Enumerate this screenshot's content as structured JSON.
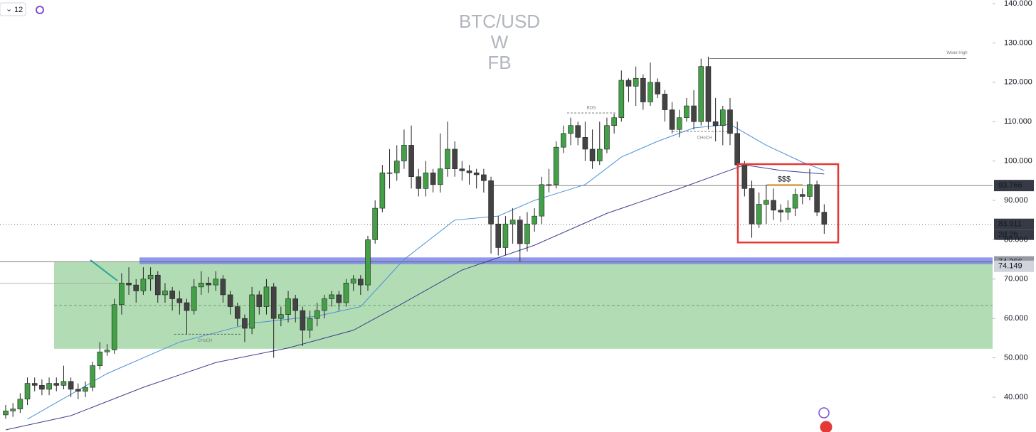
{
  "toolbar": {
    "interval": "12"
  },
  "chart_data": {
    "type": "candlestick",
    "title_lines": [
      "BTC/USD",
      "W",
      "FB"
    ],
    "up_color": "#43a047",
    "down_color": "#434343",
    "wick_color": "#222222",
    "ylim": [
      31.15,
      140.9
    ],
    "yticks": [
      {
        "value": 40,
        "label": "40.000"
      },
      {
        "value": 50,
        "label": "50.000"
      },
      {
        "value": 60,
        "label": "60.000"
      },
      {
        "value": 70,
        "label": "70.000"
      },
      {
        "value": 80,
        "label": "80.000"
      },
      {
        "value": 90,
        "label": "90.000"
      },
      {
        "value": 100,
        "label": "100.000"
      },
      {
        "value": 110,
        "label": "110.000"
      },
      {
        "value": 120,
        "label": "120.000"
      },
      {
        "value": 130,
        "label": "130.000"
      },
      {
        "value": 140,
        "label": "140.000"
      }
    ],
    "open": [
      35.5,
      36.5,
      37,
      39.5,
      43.5,
      43,
      42,
      43.5,
      43,
      44,
      42,
      41.5,
      42.5,
      48,
      51.5,
      52,
      63.5,
      69,
      68.5,
      67,
      70,
      71,
      66,
      67,
      65,
      64,
      62,
      68,
      69,
      68.5,
      70,
      66,
      63,
      60,
      57.5,
      66,
      63,
      68,
      60,
      61,
      65,
      62,
      57,
      60,
      62,
      65,
      66,
      64,
      69,
      70,
      68.5,
      80,
      88,
      97,
      97,
      100,
      104,
      96,
      93,
      97,
      94,
      98,
      103,
      98,
      97.5,
      97,
      96.5,
      95,
      84,
      78,
      84,
      85,
      79,
      84,
      86,
      94,
      94,
      103.5,
      107,
      109,
      106,
      103,
      100,
      103,
      109,
      111,
      120.5,
      119,
      121,
      115,
      120,
      117,
      113,
      108,
      111,
      114,
      110,
      124,
      110,
      109,
      113,
      107,
      99,
      93,
      84,
      89,
      90,
      87.5,
      87,
      88,
      91.5,
      91,
      94,
      87
    ],
    "high": [
      38,
      38.5,
      41,
      45,
      45,
      44.5,
      45,
      45,
      48,
      45,
      43.5,
      44,
      49,
      54,
      53.5,
      65,
      71.5,
      73,
      70,
      73,
      73,
      72,
      69,
      68,
      67,
      65,
      70,
      72,
      70.5,
      72,
      71,
      67,
      64,
      61,
      68,
      67,
      70,
      69,
      63,
      67,
      66,
      63,
      62,
      64,
      66,
      67,
      67,
      70,
      71,
      71,
      81,
      90,
      99,
      103,
      104,
      108,
      109,
      98,
      100,
      98,
      107,
      110,
      105,
      100,
      99,
      98,
      98,
      96,
      86,
      86,
      88,
      86,
      87,
      88,
      96,
      98,
      105,
      109,
      111,
      110,
      110,
      108,
      110,
      111,
      112,
      123,
      121,
      124,
      122,
      125,
      121,
      118,
      115,
      113,
      116,
      118,
      126,
      126.5,
      116,
      114,
      116,
      110,
      100,
      95,
      92,
      94,
      93,
      89,
      90,
      93,
      93,
      98,
      95,
      89
    ],
    "low": [
      34.5,
      35,
      36,
      38,
      41.5,
      40.5,
      40.5,
      41.5,
      42,
      40,
      39.5,
      40,
      41.5,
      47,
      50.5,
      51,
      61,
      66,
      64,
      66,
      67,
      64,
      64,
      62,
      61,
      56,
      61,
      66,
      66.5,
      67,
      64,
      61,
      58,
      54,
      56,
      61,
      61,
      50,
      58,
      59,
      59,
      53,
      55,
      58,
      60,
      63,
      62,
      63,
      67,
      66,
      67,
      79,
      87,
      93,
      95,
      98,
      93,
      91,
      91,
      92,
      92,
      96,
      96,
      95,
      94,
      93,
      92,
      76.5,
      76,
      76,
      79,
      74.5,
      77,
      82,
      84,
      92,
      93,
      102,
      104,
      104,
      100,
      98,
      99,
      102,
      107,
      110,
      115,
      114,
      113,
      114,
      116,
      110,
      107,
      106,
      110,
      108,
      109,
      108,
      105,
      104,
      104,
      97,
      91,
      80.5,
      83,
      84,
      85,
      84.5,
      85,
      86,
      89,
      90,
      86,
      81.5
    ],
    "close": [
      36.5,
      37,
      39.5,
      43.5,
      43,
      42,
      43.5,
      43,
      44,
      42,
      41.5,
      42.5,
      48,
      51.5,
      52,
      63.5,
      69,
      68.5,
      67,
      70,
      71,
      66,
      67,
      65,
      64,
      62,
      68,
      69,
      68.5,
      70,
      66,
      63,
      60,
      57.5,
      66,
      63,
      68,
      60,
      61,
      65,
      62,
      57,
      60,
      62,
      65,
      66,
      64,
      69,
      70,
      68.5,
      80,
      88,
      97,
      97,
      100,
      104,
      96,
      93,
      97,
      94,
      98,
      103,
      98,
      97.5,
      97,
      96.5,
      95,
      84,
      78,
      84,
      85,
      79,
      84,
      86,
      94,
      94,
      103.5,
      107,
      109,
      106,
      103,
      100,
      103,
      109,
      111,
      120.5,
      119,
      121,
      115,
      120,
      117,
      113,
      108,
      111,
      114,
      110,
      124,
      110,
      109,
      113,
      107,
      99,
      93,
      84,
      89,
      90,
      87.5,
      87,
      88,
      91.5,
      91,
      94,
      87,
      83.911
    ],
    "series": [
      {
        "color": "#4a90d9",
        "x": [
          3,
          14,
          24,
          34,
          43,
          49,
          55,
          62,
          68,
          73,
          80,
          85,
          90,
          95,
          100,
          105,
          110,
          113
        ],
        "values": [
          34.4,
          46,
          54,
          58.8,
          60.6,
          63,
          75,
          85,
          86,
          90,
          94,
          101,
          105,
          108.4,
          109.3,
          104,
          99.7,
          97.6
        ]
      },
      {
        "color": "#3b3f8f",
        "x": [
          0,
          9,
          19,
          29,
          39,
          48,
          54,
          63,
          73,
          83,
          93,
          102,
          107,
          113
        ],
        "values": [
          31.7,
          35.3,
          42.5,
          48.8,
          52.5,
          57,
          63,
          72.3,
          78.6,
          86.7,
          93,
          99,
          97.6,
          96.7
        ]
      }
    ],
    "levels": [
      93.766,
      83.911,
      74.366,
      74.149
    ],
    "countdown": "2d 2h",
    "demand_zone": {
      "top": 74.3,
      "bottom": 52.3,
      "mid": 63.3,
      "color": "#a5d6a7"
    },
    "blue_band": {
      "top": 75.5,
      "bottom": 73.8,
      "color": "#7b86e6"
    },
    "red_box": {
      "top": 99.2,
      "bottom": 79.3,
      "color": "#e53935"
    },
    "annotations": [
      {
        "text": "Weak High",
        "value": 126
      },
      {
        "text": "BOS",
        "value": 112.2
      },
      {
        "text": "CHoCH",
        "value": 107.5
      },
      {
        "text": "CHoCH",
        "value": 56
      },
      {
        "text": "$$$",
        "value": 94
      }
    ]
  }
}
